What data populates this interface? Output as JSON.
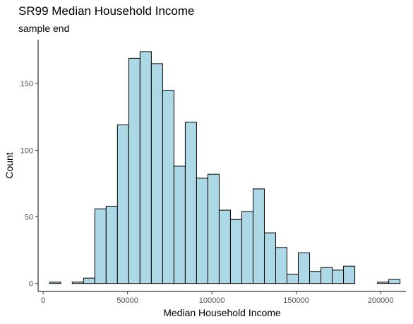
{
  "chart_data": {
    "type": "bar",
    "subtype": "histogram",
    "title": "SR99 Median Household Income",
    "subtitle": "sample end",
    "xlabel": "Median Household Income",
    "ylabel": "Count",
    "xlim": [
      -3000,
      215000
    ],
    "ylim": [
      -6,
      183
    ],
    "xticks": [
      0,
      50000,
      100000,
      150000,
      200000
    ],
    "xtick_labels": [
      "0",
      "50000",
      "100000",
      "150000",
      "200000"
    ],
    "yticks": [
      0,
      50,
      100,
      150
    ],
    "ytick_labels": [
      "0",
      "50",
      "100",
      "150"
    ],
    "grid": false,
    "legend": "none",
    "bin_width": 6700,
    "bins": [
      {
        "x0": 3800,
        "x1": 10500,
        "count": 1
      },
      {
        "x0": 10500,
        "x1": 17200,
        "count": 0
      },
      {
        "x0": 17200,
        "x1": 23900,
        "count": 1
      },
      {
        "x0": 23900,
        "x1": 30600,
        "count": 4
      },
      {
        "x0": 30600,
        "x1": 37300,
        "count": 56
      },
      {
        "x0": 37300,
        "x1": 44000,
        "count": 58
      },
      {
        "x0": 44000,
        "x1": 50700,
        "count": 119
      },
      {
        "x0": 50700,
        "x1": 57400,
        "count": 169
      },
      {
        "x0": 57400,
        "x1": 64100,
        "count": 174
      },
      {
        "x0": 64100,
        "x1": 70800,
        "count": 165
      },
      {
        "x0": 70800,
        "x1": 77500,
        "count": 145
      },
      {
        "x0": 77500,
        "x1": 84200,
        "count": 88
      },
      {
        "x0": 84200,
        "x1": 90900,
        "count": 121
      },
      {
        "x0": 90900,
        "x1": 97600,
        "count": 79
      },
      {
        "x0": 97600,
        "x1": 104300,
        "count": 82
      },
      {
        "x0": 104300,
        "x1": 111000,
        "count": 55
      },
      {
        "x0": 111000,
        "x1": 117700,
        "count": 48
      },
      {
        "x0": 117700,
        "x1": 124400,
        "count": 54
      },
      {
        "x0": 124400,
        "x1": 131100,
        "count": 71
      },
      {
        "x0": 131100,
        "x1": 137800,
        "count": 38
      },
      {
        "x0": 137800,
        "x1": 144500,
        "count": 27
      },
      {
        "x0": 144500,
        "x1": 151200,
        "count": 7
      },
      {
        "x0": 151200,
        "x1": 157900,
        "count": 23
      },
      {
        "x0": 157900,
        "x1": 164600,
        "count": 9
      },
      {
        "x0": 164600,
        "x1": 171300,
        "count": 12
      },
      {
        "x0": 171300,
        "x1": 178000,
        "count": 10
      },
      {
        "x0": 178000,
        "x1": 184700,
        "count": 13
      },
      {
        "x0": 184700,
        "x1": 191400,
        "count": 0
      },
      {
        "x0": 191400,
        "x1": 198100,
        "count": 0
      },
      {
        "x0": 198100,
        "x1": 204800,
        "count": 1
      },
      {
        "x0": 204800,
        "x1": 211500,
        "count": 3
      }
    ],
    "colors": {
      "bar_fill": "#add8e6",
      "bar_stroke": "#000000",
      "axis": "#000000",
      "tick_label": "#4d4d4d",
      "background": "#ffffff"
    }
  }
}
